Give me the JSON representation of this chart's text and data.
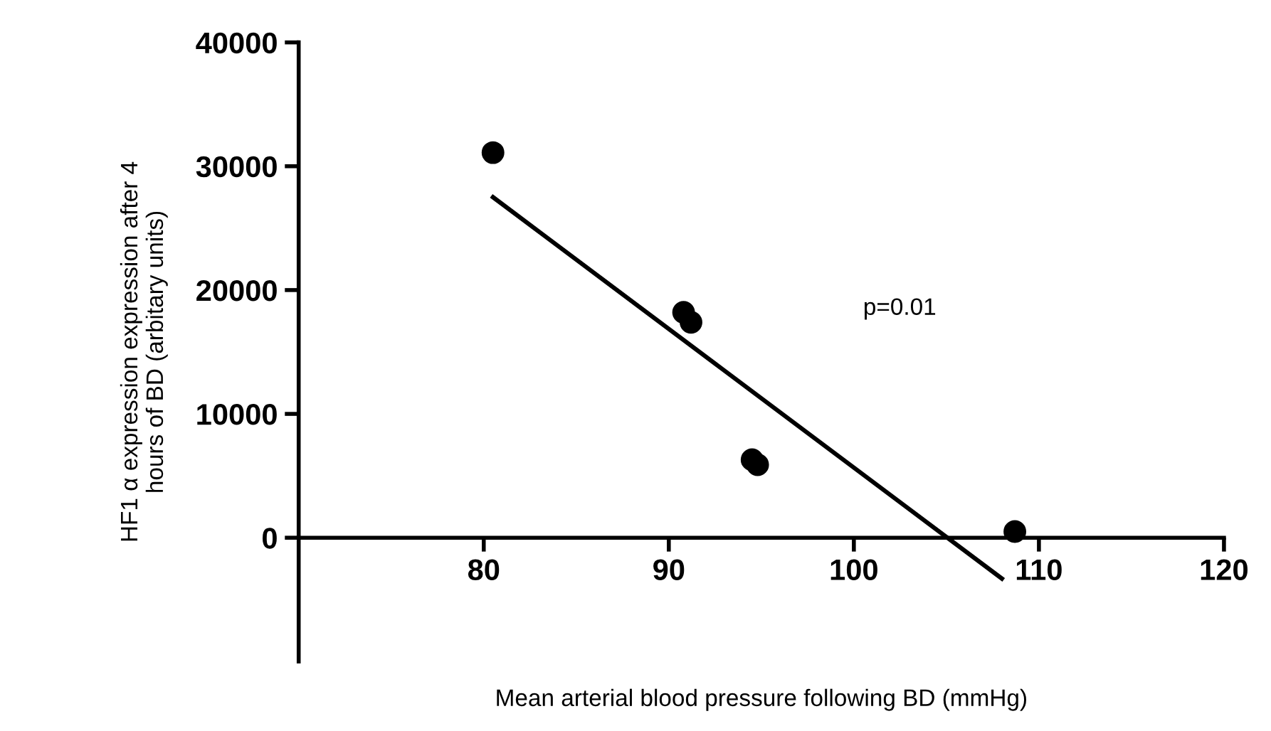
{
  "chart_data": {
    "type": "scatter",
    "xlabel": "Mean arterial blood pressure following BD (mmHg)",
    "ylabel": "HF1 α expression expression after 4\nhours of BD (arbitary units)",
    "series": [
      {
        "color": "#000000",
        "marker": "circle",
        "x": [
          80.5,
          90.8,
          91.2,
          94.5,
          94.8,
          108.7
        ],
        "values": [
          31100,
          18200,
          17400,
          6300,
          5900,
          500
        ]
      },
      {
        "type": "line",
        "color": "#000000",
        "marker": "none",
        "line_style": "solid",
        "x": [
          80.5,
          108.0
        ],
        "values": [
          27500,
          -3300
        ]
      }
    ],
    "annotations": [
      "p=0.01"
    ],
    "xlim": [
      70,
      120
    ],
    "ylim": [
      -10000,
      40000
    ],
    "xticks": [
      80,
      90,
      100,
      110,
      120
    ],
    "yticks": [
      0,
      10000,
      20000,
      30000,
      40000
    ],
    "grid": false,
    "legend": false
  }
}
